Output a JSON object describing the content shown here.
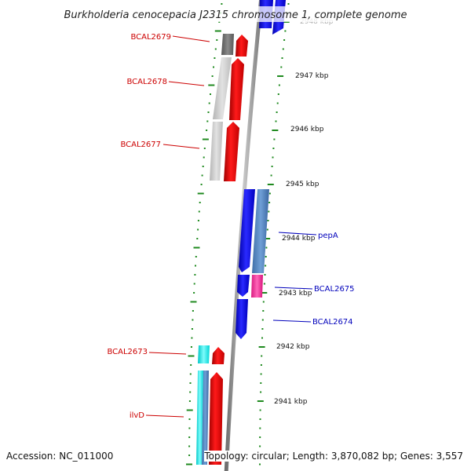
{
  "title": "Burkholderia cenocepacia J2315 chromosome 1, complete genome",
  "accession": "Accession: NC_011000",
  "topology": "Topology: circular; Length: 3,870,082 bp; Genes: 3,557",
  "colors": {
    "backbone": "#8c8c8c",
    "ticks": "#1f8a1f",
    "label_left": "#cc0000",
    "label_right": "#0000bb"
  },
  "scale_labels": [
    "2948 kbp",
    "2947 kbp",
    "2946 kbp",
    "2945 kbp",
    "2944 kbp",
    "2943 kbp",
    "2942 kbp",
    "2941 kbp"
  ],
  "gene_labels": {
    "left": [
      "BCAL2679",
      "BCAL2678",
      "BCAL2677",
      "BCAL2673",
      "ilvD"
    ],
    "right": [
      "pepA",
      "BCAL2675",
      "BCAL2674"
    ]
  }
}
